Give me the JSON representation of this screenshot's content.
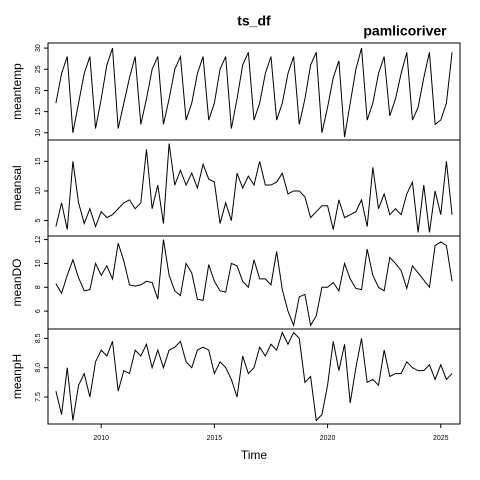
{
  "chart_data": {
    "type": "line",
    "title": "ts_df",
    "subtitle": "pamlicoriver",
    "xlabel": "Time",
    "x": [
      2008,
      2008.25,
      2008.5,
      2008.75,
      2009,
      2009.25,
      2009.5,
      2009.75,
      2010,
      2010.25,
      2010.5,
      2010.75,
      2011,
      2011.25,
      2011.5,
      2011.75,
      2012,
      2012.25,
      2012.5,
      2012.75,
      2013,
      2013.25,
      2013.5,
      2013.75,
      2014,
      2014.25,
      2014.5,
      2014.75,
      2015,
      2015.25,
      2015.5,
      2015.75,
      2016,
      2016.25,
      2016.5,
      2016.75,
      2017,
      2017.25,
      2017.5,
      2017.75,
      2018,
      2018.25,
      2018.5,
      2018.75,
      2019,
      2019.25,
      2019.5,
      2019.75,
      2020,
      2020.25,
      2020.5,
      2020.75,
      2021,
      2021.25,
      2021.5,
      2021.75,
      2022,
      2022.25,
      2022.5,
      2022.75,
      2023,
      2023.25,
      2023.5,
      2023.75,
      2024,
      2024.25,
      2024.5,
      2024.75,
      2025,
      2025.25,
      2025.5
    ],
    "xlim": [
      2007.65,
      2025.85
    ],
    "xticks": [
      2010,
      2015,
      2020,
      2025
    ],
    "series": [
      {
        "name": "meantemp",
        "color": "#000000",
        "values": [
          17,
          24,
          28,
          10,
          17,
          24,
          28,
          11,
          18,
          26,
          30,
          11,
          17,
          23,
          28,
          12,
          18,
          25,
          28,
          12,
          18,
          25,
          28,
          13,
          17,
          24,
          28,
          13,
          17,
          25,
          28,
          11,
          18,
          26,
          29,
          13,
          17,
          24,
          28,
          13,
          17,
          24,
          28,
          12,
          18,
          26,
          29,
          10,
          16,
          23,
          27,
          9,
          17,
          25,
          30,
          13,
          17,
          24,
          28,
          14,
          18,
          24,
          29,
          13,
          16,
          23,
          29,
          12,
          13,
          17,
          29
        ],
        "ylim": [
          8.3,
          31.2
        ],
        "yticks": [
          10,
          15,
          20,
          25,
          30
        ]
      },
      {
        "name": "meansal",
        "color": "#000000",
        "values": [
          4,
          8,
          3.5,
          15,
          8,
          4.5,
          7,
          4,
          6.5,
          5.5,
          6,
          7,
          8,
          8.5,
          7,
          8,
          17,
          7,
          11,
          4.5,
          18,
          11,
          13.5,
          11,
          13,
          10.5,
          14.5,
          12,
          11.5,
          4.5,
          8,
          5,
          13,
          10.5,
          12.5,
          11,
          15,
          11,
          11,
          11.5,
          13,
          9.5,
          10,
          10,
          9,
          5.5,
          6.5,
          7.5,
          7.5,
          3.5,
          8.5,
          5.5,
          6,
          6.5,
          8.5,
          4,
          14,
          7,
          9.5,
          6,
          7,
          6,
          9.5,
          11.5,
          3,
          11,
          3,
          10,
          6,
          15,
          6
        ],
        "ylim": [
          2.4,
          18.6
        ],
        "yticks": [
          5,
          10,
          15
        ]
      },
      {
        "name": "meanDO",
        "color": "#000000",
        "values": [
          8.3,
          7.5,
          9,
          10.3,
          8.8,
          7.7,
          7.8,
          10,
          9,
          9.8,
          8.7,
          11.7,
          10.2,
          8.2,
          8.1,
          8.2,
          8.5,
          8.4,
          7,
          12,
          9,
          7.7,
          7.3,
          10,
          9.2,
          7,
          6.9,
          9.9,
          8.5,
          7.7,
          7.6,
          10,
          9.8,
          8.5,
          8,
          10.3,
          8.7,
          8.7,
          8.2,
          11,
          7.8,
          6,
          4.8,
          7.2,
          7.4,
          4.8,
          5.6,
          8,
          8,
          8.4,
          7.7,
          10,
          8.7,
          7.9,
          7.8,
          11.2,
          9,
          8,
          7.7,
          10.5,
          10,
          9.4,
          7.9,
          9.8,
          9.2,
          8.6,
          8,
          11.5,
          11.8,
          11.5,
          8.5
        ],
        "ylim": [
          4.5,
          12.3
        ],
        "yticks": [
          6,
          8,
          10,
          12
        ]
      },
      {
        "name": "meanpH",
        "color": "#000000",
        "values": [
          7.6,
          7.2,
          8,
          7.1,
          7.7,
          7.9,
          7.5,
          8.1,
          8.3,
          8.2,
          8.45,
          7.6,
          7.95,
          7.9,
          8.3,
          8.2,
          8.4,
          8,
          8.3,
          8,
          8.3,
          8.35,
          8.45,
          8.1,
          8,
          8.3,
          8.35,
          8.3,
          7.9,
          8.1,
          8,
          7.8,
          7.5,
          8.2,
          7.9,
          8,
          8.35,
          8.2,
          8.4,
          8.3,
          8.6,
          8.4,
          8.6,
          8.5,
          7.75,
          7.85,
          7.1,
          7.2,
          7.7,
          8.45,
          7.95,
          8.4,
          7.4,
          8,
          8.5,
          7.75,
          7.8,
          7.7,
          8.3,
          7.85,
          7.9,
          7.9,
          8.1,
          8,
          7.95,
          7.95,
          8.05,
          7.8,
          8.05,
          7.8,
          7.9
        ],
        "ylim": [
          7.04,
          8.66
        ],
        "yticks": [
          7.5,
          {
            "value": 8,
            "label": "8.0"
          },
          8.5
        ]
      }
    ]
  }
}
